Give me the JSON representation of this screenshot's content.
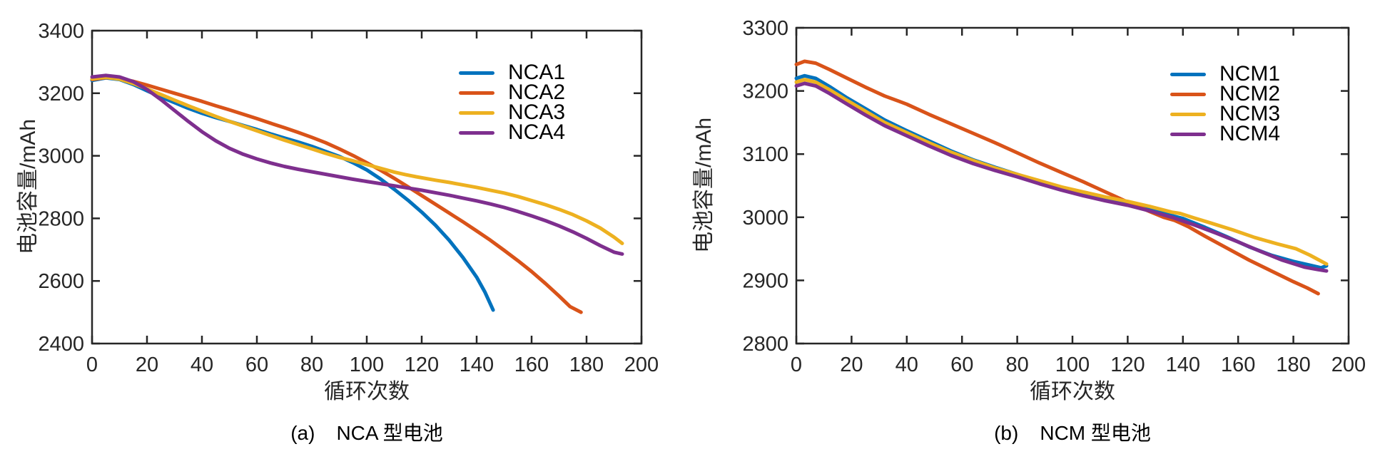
{
  "page": {
    "background": "#ffffff",
    "axis_color": "#262626",
    "text_color": "#262626"
  },
  "chart_data": [
    {
      "type": "line",
      "caption_label": "(a)",
      "caption_title": "NCA 型电池",
      "xlabel": "循环次数",
      "ylabel": "电池容量/mAh",
      "xlim": [
        0,
        200
      ],
      "ylim": [
        2400,
        3400
      ],
      "xticks": [
        0,
        20,
        40,
        60,
        80,
        100,
        120,
        140,
        160,
        180,
        200
      ],
      "yticks": [
        2400,
        2600,
        2800,
        3000,
        3200,
        3400
      ],
      "grid": false,
      "legend_position": "upper-right-inside",
      "series": [
        {
          "name": "NCA1",
          "color": "#0072BD",
          "x": [
            0,
            5,
            10,
            15,
            20,
            25,
            30,
            35,
            40,
            45,
            50,
            55,
            60,
            65,
            70,
            75,
            80,
            85,
            90,
            95,
            100,
            105,
            110,
            115,
            120,
            125,
            130,
            135,
            140,
            143,
            146
          ],
          "y": [
            3241,
            3249,
            3244,
            3228,
            3208,
            3188,
            3170,
            3152,
            3136,
            3122,
            3110,
            3097,
            3084,
            3070,
            3057,
            3044,
            3030,
            3014,
            2998,
            2978,
            2955,
            2926,
            2893,
            2858,
            2820,
            2778,
            2730,
            2675,
            2612,
            2565,
            2507
          ]
        },
        {
          "name": "NCA2",
          "color": "#D95319",
          "x": [
            0,
            5,
            10,
            15,
            20,
            25,
            30,
            35,
            40,
            45,
            50,
            55,
            60,
            65,
            70,
            75,
            80,
            85,
            90,
            95,
            100,
            105,
            110,
            115,
            120,
            125,
            130,
            135,
            140,
            145,
            150,
            155,
            160,
            165,
            170,
            174,
            178
          ],
          "y": [
            3244,
            3250,
            3247,
            3238,
            3226,
            3213,
            3200,
            3187,
            3174,
            3160,
            3147,
            3133,
            3119,
            3104,
            3090,
            3075,
            3059,
            3042,
            3022,
            3001,
            2978,
            2954,
            2928,
            2901,
            2873,
            2845,
            2817,
            2789,
            2760,
            2730,
            2698,
            2665,
            2630,
            2592,
            2552,
            2518,
            2500
          ]
        },
        {
          "name": "NCA3",
          "color": "#EDB120",
          "x": [
            0,
            5,
            10,
            15,
            20,
            25,
            30,
            35,
            40,
            45,
            50,
            55,
            60,
            65,
            70,
            75,
            80,
            85,
            90,
            95,
            100,
            105,
            110,
            114,
            118,
            125,
            130,
            135,
            140,
            145,
            150,
            155,
            160,
            165,
            170,
            175,
            180,
            185,
            190,
            193
          ],
          "y": [
            3246,
            3251,
            3245,
            3231,
            3214,
            3196,
            3178,
            3160,
            3143,
            3126,
            3110,
            3095,
            3080,
            3065,
            3050,
            3036,
            3022,
            3008,
            2995,
            2984,
            2972,
            2960,
            2948,
            2940,
            2933,
            2922,
            2915,
            2907,
            2899,
            2890,
            2881,
            2870,
            2857,
            2844,
            2829,
            2812,
            2792,
            2769,
            2740,
            2720
          ]
        },
        {
          "name": "NCA4",
          "color": "#7E2F8E",
          "x": [
            0,
            5,
            10,
            15,
            20,
            25,
            30,
            35,
            40,
            45,
            50,
            55,
            60,
            65,
            70,
            75,
            80,
            85,
            90,
            95,
            100,
            105,
            110,
            115,
            120,
            125,
            130,
            135,
            140,
            145,
            150,
            155,
            160,
            165,
            170,
            175,
            180,
            185,
            190,
            193
          ],
          "y": [
            3252,
            3257,
            3252,
            3237,
            3212,
            3180,
            3145,
            3110,
            3077,
            3048,
            3024,
            3005,
            2990,
            2977,
            2966,
            2957,
            2949,
            2941,
            2933,
            2925,
            2918,
            2911,
            2904,
            2897,
            2890,
            2882,
            2874,
            2865,
            2856,
            2846,
            2835,
            2822,
            2808,
            2793,
            2776,
            2757,
            2736,
            2713,
            2692,
            2686
          ]
        }
      ]
    },
    {
      "type": "line",
      "caption_label": "(b)",
      "caption_title": "NCM 型电池",
      "xlabel": "循环次数",
      "ylabel": "电池容量/mAh",
      "xlim": [
        0,
        200
      ],
      "ylim": [
        2800,
        3300
      ],
      "xticks": [
        0,
        20,
        40,
        60,
        80,
        100,
        120,
        140,
        160,
        180,
        200
      ],
      "yticks": [
        2800,
        2900,
        3000,
        3100,
        3200,
        3300
      ],
      "grid": false,
      "legend_position": "upper-right-inside",
      "series": [
        {
          "name": "NCM1",
          "color": "#0072BD",
          "x": [
            0,
            3,
            7,
            12,
            18,
            25,
            32,
            40,
            48,
            56,
            64,
            72,
            80,
            88,
            96,
            104,
            112,
            120,
            128,
            133,
            140,
            148,
            156,
            164,
            172,
            180,
            186,
            190,
            192
          ],
          "y": [
            3220,
            3224,
            3220,
            3207,
            3190,
            3172,
            3154,
            3137,
            3121,
            3105,
            3091,
            3079,
            3068,
            3056,
            3046,
            3036,
            3028,
            3021,
            3012,
            3006,
            2998,
            2984,
            2969,
            2953,
            2940,
            2930,
            2924,
            2920,
            2923
          ]
        },
        {
          "name": "NCM2",
          "color": "#D95319",
          "x": [
            0,
            3,
            7,
            12,
            18,
            25,
            32,
            37,
            40,
            48,
            56,
            64,
            72,
            80,
            88,
            96,
            104,
            112,
            120,
            128,
            133,
            137,
            142,
            148,
            156,
            164,
            172,
            180,
            185,
            189
          ],
          "y": [
            3242,
            3247,
            3244,
            3234,
            3221,
            3206,
            3192,
            3184,
            3179,
            3163,
            3148,
            3133,
            3118,
            3102,
            3086,
            3071,
            3056,
            3040,
            3024,
            3009,
            3000,
            2995,
            2985,
            2970,
            2951,
            2932,
            2915,
            2898,
            2888,
            2879
          ]
        },
        {
          "name": "NCM3",
          "color": "#EDB120",
          "x": [
            0,
            3,
            7,
            12,
            18,
            25,
            32,
            40,
            48,
            56,
            64,
            72,
            80,
            88,
            96,
            104,
            112,
            120,
            128,
            136,
            139,
            144,
            150,
            158,
            166,
            174,
            181,
            186,
            192
          ],
          "y": [
            3214,
            3218,
            3214,
            3202,
            3186,
            3168,
            3150,
            3134,
            3118,
            3103,
            3090,
            3078,
            3068,
            3058,
            3048,
            3040,
            3032,
            3025,
            3017,
            3008,
            3006,
            2999,
            2991,
            2980,
            2968,
            2958,
            2950,
            2940,
            2926
          ]
        },
        {
          "name": "NCM4",
          "color": "#7E2F8E",
          "x": [
            0,
            3,
            7,
            12,
            18,
            25,
            32,
            40,
            48,
            56,
            64,
            72,
            80,
            88,
            96,
            104,
            112,
            120,
            128,
            136,
            144,
            152,
            160,
            168,
            176,
            184,
            189,
            192
          ],
          "y": [
            3208,
            3212,
            3208,
            3196,
            3180,
            3162,
            3145,
            3129,
            3113,
            3098,
            3085,
            3074,
            3064,
            3053,
            3043,
            3034,
            3026,
            3019,
            3010,
            3000,
            2988,
            2975,
            2961,
            2946,
            2932,
            2921,
            2917,
            2915
          ]
        }
      ]
    }
  ]
}
